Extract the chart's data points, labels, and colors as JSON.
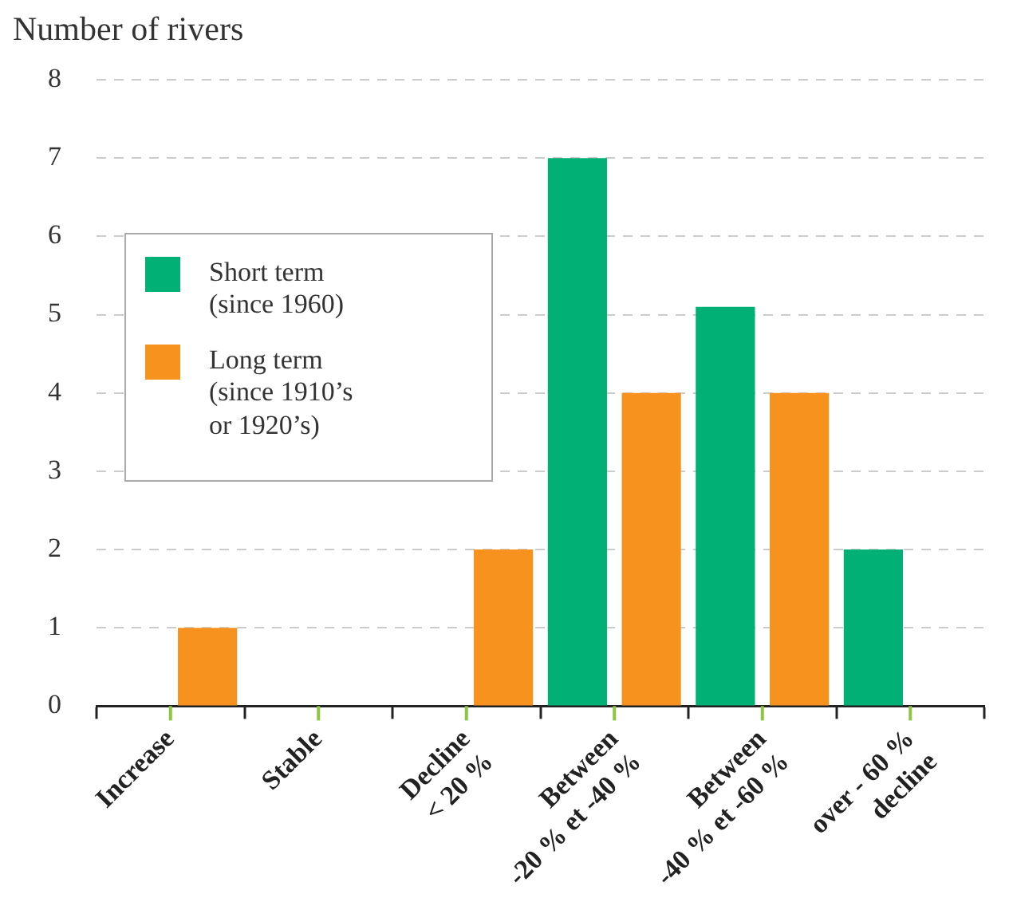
{
  "chart_data": {
    "type": "bar",
    "ylabel": "Number of rivers",
    "categories": [
      "Increase",
      "Stable",
      "Decline\n< 20 %",
      "Between\n-20 % et -40 %",
      "Between\n-40 % et -60 %",
      "over - 60 %\ndecline"
    ],
    "series": [
      {
        "name": "Short term\n(since 1960)",
        "color": "#00b074",
        "values": [
          0,
          0,
          0,
          7,
          5.1,
          2
        ]
      },
      {
        "name": "Long term\n(since 1910’s\nor 1920’s)",
        "color": "#f7921e",
        "values": [
          1,
          0,
          2,
          4,
          4,
          0
        ]
      }
    ],
    "ylim": [
      0,
      8
    ],
    "yticks": [
      0,
      1,
      2,
      3,
      4,
      5,
      6,
      7,
      8
    ],
    "grid": "y",
    "legend": "left"
  }
}
